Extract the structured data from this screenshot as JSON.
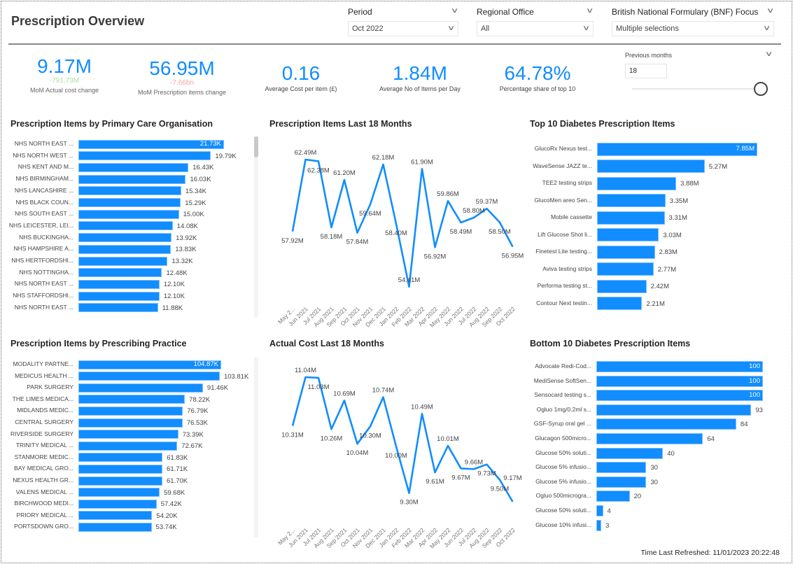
{
  "header": {
    "title": "Prescription Overview"
  },
  "slicers": [
    {
      "label": "Period",
      "value": "Oct 2022"
    },
    {
      "label": "Regional Office",
      "value": "All"
    },
    {
      "label": "British National Formulary (BNF) Focus",
      "value": "Multiple selections"
    }
  ],
  "kpis": [
    {
      "value": "9.17M",
      "sub": "-791.73M",
      "sub_color": "#a8e29c",
      "label": "MoM Actual cost change"
    },
    {
      "value": "56.95M",
      "sub": "-7.66bn",
      "sub_color": "#f2a5a5",
      "label": "MoM Prescription items change"
    },
    {
      "value": "0.16",
      "label": "Average Cost per item (£)"
    },
    {
      "value": "1.84M",
      "label": "Average No of Items per Day"
    },
    {
      "value": "64.78%",
      "label": "Percentage share of top 10"
    }
  ],
  "previous_months": {
    "label": "Previous months",
    "value": "18",
    "slider_fraction": 1.0
  },
  "footer": {
    "refreshed": "Time Last Refreshed: 11/01/2023 20:22:48"
  },
  "colors": {
    "accent": "#118DFF"
  },
  "chart_data": [
    {
      "id": "pco",
      "type": "bar",
      "orientation": "horizontal",
      "title": "Prescription Items by Primary Care Organisation",
      "categories": [
        "NHS NORTH EAST ...",
        "NHS NORTH WEST ...",
        "NHS KENT AND M...",
        "NHS BIRMINGHAM...",
        "NHS LANCASHIRE ...",
        "NHS BLACK COUN...",
        "NHS SOUTH EAST ...",
        "NHS LEICESTER, LEI...",
        "NHS BUCKINGHA...",
        "NHS HAMPSHIRE A...",
        "NHS HERTFORDSHI...",
        "NHS NOTTINGHA...",
        "NHS NORTH EAST ...",
        "NHS STAFFORDSHI...",
        "NHS NORTH EAST ..."
      ],
      "values": [
        21730,
        19790,
        16430,
        16030,
        15340,
        15290,
        15000,
        14080,
        13920,
        13830,
        13320,
        12480,
        12100,
        12100,
        11880
      ],
      "labels": [
        "21.73K",
        "19.79K",
        "16.43K",
        "16.03K",
        "15.34K",
        "15.29K",
        "15.00K",
        "14.08K",
        "13.92K",
        "13.83K",
        "13.32K",
        "12.48K",
        "12.10K",
        "12.10K",
        "11.88K"
      ]
    },
    {
      "id": "practice",
      "type": "bar",
      "orientation": "horizontal",
      "title": "Prescription Items by Prescribing Practice",
      "categories": [
        "MODALITY PARTNE...",
        "MEDICUS HEALTH ...",
        "PARK SURGERY",
        "THE LIMES MEDICA...",
        "MIDLANDS MEDIC...",
        "CENTRAL SURGERY",
        "RIVERSIDE SURGERY",
        "TRINITY MEDICAL ...",
        "STANMORE MEDIC...",
        "BAY MEDICAL GRO...",
        "NEXUS HEALTH GR...",
        "VALENS MEDICAL ...",
        "BIRCHWOOD MEDI...",
        "PRIORY MEDICAL ...",
        "PORTSDOWN GRO..."
      ],
      "values": [
        104870,
        103810,
        91460,
        78220,
        76790,
        76530,
        73390,
        72670,
        61830,
        61710,
        61700,
        59680,
        57420,
        54200,
        53740
      ],
      "labels": [
        "104.87K",
        "103.81K",
        "91.46K",
        "78.22K",
        "76.79K",
        "76.53K",
        "73.39K",
        "72.67K",
        "61.83K",
        "61.71K",
        "61.70K",
        "59.68K",
        "57.42K",
        "54.20K",
        "53.74K"
      ]
    },
    {
      "id": "top10",
      "type": "bar",
      "orientation": "horizontal",
      "title": "Top 10 Diabetes Prescription Items",
      "categories": [
        "GlucoRx Nexus test...",
        "WaveSense JAZZ te...",
        "TEE2 testing strips",
        "GlucoMen areo Sen...",
        "Mobile cassette",
        "Lift Glucose Shot li...",
        "Finetest Lite testing...",
        "Aviva testing strips",
        "Performa testing st...",
        "Contour Next testin..."
      ],
      "values": [
        7850000,
        5270000,
        3880000,
        3350000,
        3310000,
        3030000,
        2830000,
        2770000,
        2420000,
        2210000
      ],
      "labels": [
        "7.85M",
        "5.27M",
        "3.88M",
        "3.35M",
        "3.31M",
        "3.03M",
        "2.83M",
        "2.77M",
        "2.42M",
        "2.21M"
      ]
    },
    {
      "id": "bottom10",
      "type": "bar",
      "orientation": "horizontal",
      "title": "Bottom 10 Diabetes Prescription Items",
      "categories": [
        "Advocate Redi-Cod...",
        "MediSense SoftSen...",
        "Sensocard testing s...",
        "Ogluo 1mg/0.2ml s...",
        "GSF-Syrup oral gel ...",
        "Glucagon 500micro...",
        "Glucose 50% soluti...",
        "Glucose 5% infusio...",
        "Glucose 5% infusio...",
        "Ogluo 500microgra...",
        "Glucose 50% soluti...",
        "Glucose 10% infusi..."
      ],
      "values": [
        100,
        100,
        100,
        93,
        84,
        64,
        40,
        30,
        30,
        20,
        4,
        3
      ],
      "labels": [
        "100",
        "100",
        "100",
        "93",
        "84",
        "64",
        "40",
        "30",
        "30",
        "20",
        "4",
        "3"
      ]
    },
    {
      "id": "items18",
      "type": "line",
      "title": "Prescription Items Last 18 Months",
      "x": [
        "May 2...",
        "Jun 2021",
        "Jul 2021",
        "Aug 2021",
        "Sep 2021",
        "Oct 2021",
        "Nov 2021",
        "Dec 2021",
        "Jan 2022",
        "Feb 2022",
        "Mar 2022",
        "Apr 2022",
        "May 2022",
        "Jun 2022",
        "Jul 2022",
        "Aug 2022",
        "Sep 2022",
        "Oct 2022"
      ],
      "values": [
        57.92,
        62.49,
        62.38,
        58.18,
        61.2,
        57.84,
        59.64,
        62.18,
        58.4,
        54.41,
        61.9,
        56.92,
        59.86,
        58.49,
        58.8,
        59.37,
        58.5,
        56.95
      ],
      "labels": [
        "57.92M",
        "62.49M",
        "62.38M",
        "58.18M",
        "61.20M",
        "57.84M",
        "59.64M",
        "62.18M",
        "58.40M",
        "54.41M",
        "61.90M",
        "56.92M",
        "59.86M",
        "58.49M",
        "58.80M",
        "59.37M",
        "58.50M",
        "56.95M"
      ]
    },
    {
      "id": "cost18",
      "type": "line",
      "title": "Actual Cost Last 18 Months",
      "x": [
        "May 2...",
        "Jun 2021",
        "Jul 2021",
        "Aug 2021",
        "Sep 2021",
        "Oct 2021",
        "Nov 2021",
        "Dec 2021",
        "Jan 2022",
        "Feb 2022",
        "Mar 2022",
        "Apr 2022",
        "May 2022",
        "Jun 2022",
        "Jul 2022",
        "Aug 2022",
        "Sep 2022",
        "Oct 2022"
      ],
      "values": [
        10.31,
        11.04,
        11.03,
        10.26,
        10.69,
        10.04,
        10.3,
        10.74,
        10.0,
        9.3,
        10.49,
        9.61,
        10.01,
        9.67,
        9.66,
        9.73,
        9.5,
        9.17
      ],
      "labels": [
        "10.31M",
        "11.04M",
        "11.03M",
        "10.26M",
        "10.69M",
        "10.04M",
        "10.30M",
        "10.74M",
        "10.00M",
        "9.30M",
        "10.49M",
        "9.61M",
        "10.01M",
        "9.67M",
        "9.66M",
        "9.73M",
        "9.50M",
        "9.17M"
      ]
    }
  ]
}
